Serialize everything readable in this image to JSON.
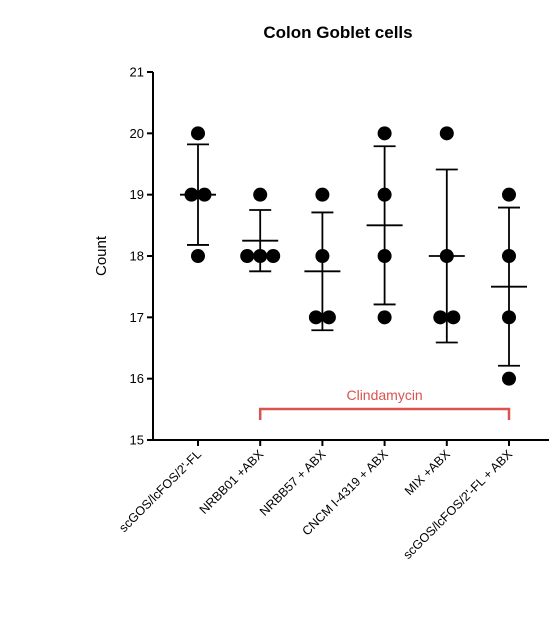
{
  "chart_data": {
    "type": "scatter",
    "title": "Colon Goblet cells",
    "xlabel": "",
    "ylabel": "Count",
    "ylim": [
      15,
      21
    ],
    "yticks": [
      15,
      16,
      17,
      18,
      19,
      20,
      21
    ],
    "grid": false,
    "categories": [
      "scGOS/lcFOS/2'-FL",
      "NRBB01 +ABX",
      "NRBB57 + ABX",
      "CNCM I-4319 + ABX",
      "MIX +ABX",
      "scGOS/lcFOS/2'-FL + ABX"
    ],
    "groups": [
      {
        "points": [
          20,
          19,
          19,
          18
        ],
        "mean": 19.0,
        "sd_upper": 19.82,
        "sd_lower": 18.18
      },
      {
        "points": [
          19,
          18,
          18,
          18
        ],
        "mean": 18.25,
        "sd_upper": 18.75,
        "sd_lower": 17.75
      },
      {
        "points": [
          19,
          18,
          17,
          17
        ],
        "mean": 17.75,
        "sd_upper": 18.71,
        "sd_lower": 16.79
      },
      {
        "points": [
          20,
          19,
          18,
          17
        ],
        "mean": 18.5,
        "sd_upper": 19.79,
        "sd_lower": 17.21
      },
      {
        "points": [
          20,
          18,
          17,
          17
        ],
        "mean": 18.0,
        "sd_upper": 19.41,
        "sd_lower": 16.59
      },
      {
        "points": [
          19,
          18,
          17,
          16
        ],
        "mean": 17.5,
        "sd_upper": 18.79,
        "sd_lower": 16.21
      }
    ],
    "annotations": [
      {
        "text": "Clindamycin",
        "color": "#d9534f",
        "from_category": 1,
        "to_category": 5
      }
    ],
    "colors": {
      "points": "#000000",
      "bracket": "#d9534f"
    }
  }
}
